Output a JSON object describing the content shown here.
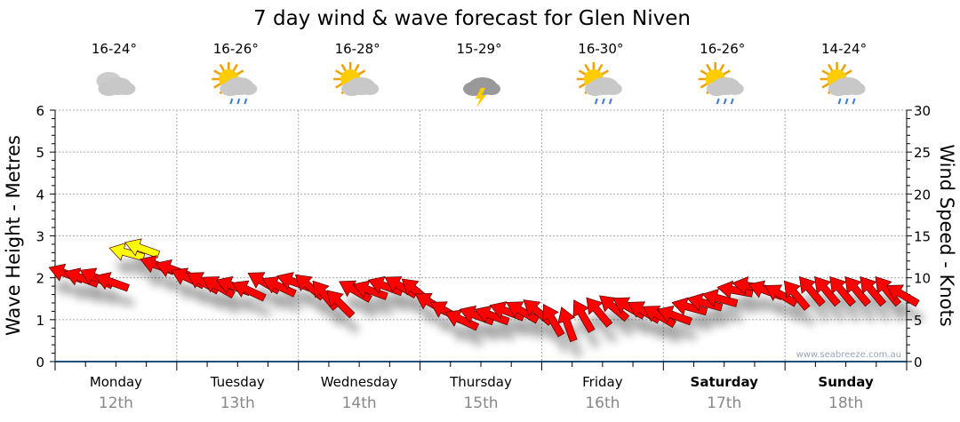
{
  "chart_data": {
    "type": "scatter",
    "title": "7 day wind & wave forecast for Glen Niven",
    "ylabel_left": "Wave Height - Metres",
    "ylabel_right": "Wind Speed - Knots",
    "ylim_left": [
      0,
      6
    ],
    "ylim_right": [
      0,
      30
    ],
    "yticks_left": [
      "0",
      "1",
      "2",
      "3",
      "4",
      "5",
      "6"
    ],
    "yticks_right": [
      "0",
      "5",
      "10",
      "15",
      "20",
      "25",
      "30"
    ],
    "grid": true,
    "watermark": "www.seabreeze.com.au",
    "days": [
      {
        "name": "Monday",
        "date": "12th",
        "temp": "16-24°",
        "icon": "cloudy-icon",
        "bold": false
      },
      {
        "name": "Tuesday",
        "date": "13th",
        "temp": "16-26°",
        "icon": "sun-cloud-rain-icon",
        "bold": false
      },
      {
        "name": "Wednesday",
        "date": "14th",
        "temp": "16-28°",
        "icon": "sun-cloud-icon",
        "bold": false
      },
      {
        "name": "Thursday",
        "date": "15th",
        "temp": "15-29°",
        "icon": "storm-icon",
        "bold": false
      },
      {
        "name": "Friday",
        "date": "16th",
        "temp": "16-30°",
        "icon": "sun-cloud-rain-icon",
        "bold": false
      },
      {
        "name": "Saturday",
        "date": "17th",
        "temp": "16-26°",
        "icon": "sun-cloud-rain-icon",
        "bold": true
      },
      {
        "name": "Sunday",
        "date": "18th",
        "temp": "14-24°",
        "icon": "sun-cloud-rain-icon",
        "bold": true
      }
    ],
    "wind_speed_knots": [
      10.5,
      10,
      10,
      9.5,
      13,
      13.5,
      11.5,
      11,
      10,
      9.5,
      9,
      9,
      8.5,
      9.5,
      9,
      9.5,
      9,
      8,
      7,
      8.5,
      8.5,
      9,
      9,
      8.5,
      7,
      6,
      5,
      5.5,
      5.5,
      6,
      6,
      6,
      5,
      4.5,
      5.5,
      6,
      6.5,
      6.5,
      6,
      5.5,
      5.5,
      6.5,
      7,
      7.5,
      8.5,
      9,
      8.5,
      8,
      8,
      8.5,
      8.5,
      8.5,
      8.5,
      8.5,
      8.5,
      8
    ],
    "wind_arrow_angle_deg": [
      160,
      160,
      155,
      160,
      165,
      160,
      160,
      160,
      155,
      150,
      150,
      160,
      155,
      150,
      155,
      160,
      140,
      130,
      135,
      150,
      160,
      160,
      150,
      140,
      150,
      150,
      155,
      160,
      160,
      160,
      150,
      140,
      120,
      110,
      120,
      130,
      140,
      150,
      150,
      150,
      160,
      165,
      165,
      165,
      170,
      170,
      160,
      150,
      130,
      130,
      130,
      130,
      130,
      130,
      130,
      150
    ]
  }
}
